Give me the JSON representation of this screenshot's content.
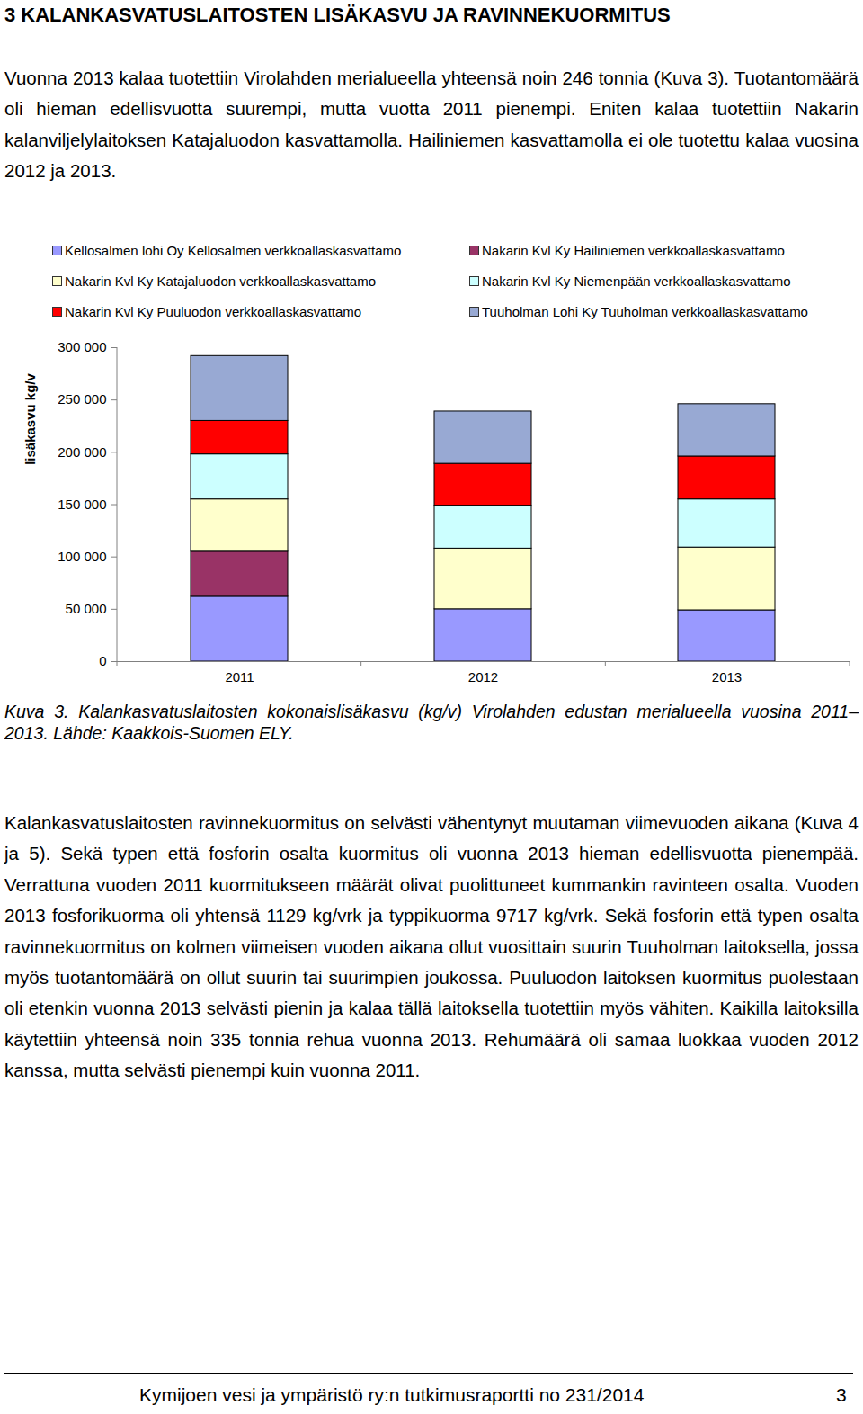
{
  "heading": "3 KALANKASVATUSLAITOSTEN LISÄKASVU JA RAVINNEKUORMITUS",
  "paragraphs": [
    "Vuonna 2013 kalaa tuotettiin Virolahden merialueella yhteensä noin 246 tonnia (Kuva 3). Tuotantomäärä oli hieman edellisvuotta suurempi, mutta vuotta 2011 pienempi. Eniten kalaa tuotettiin Nakarin kalanviljelylaitoksen Katajaluodon kasvattamolla. Hailiniemen kasvattamolla ei ole tuotettu kalaa vuosina 2012 ja 2013.",
    "Kalankasvatuslaitosten ravinnekuormitus on selvästi vähentynyt muutaman viimevuoden aikana (Kuva 4 ja 5). Sekä typen että fosforin osalta kuormitus oli vuonna 2013 hieman edellisvuotta pienempää. Verrattuna vuoden 2011 kuormitukseen määrät olivat puolittuneet kummankin ravinteen osalta. Vuoden 2013 fosforikuorma oli yhtensä 1129 kg/vrk ja typpikuorma 9717 kg/vrk. Sekä fosforin että typen osalta ravinnekuormitus on kolmen viimeisen vuoden aikana ollut vuosittain suurin Tuuholman laitoksella, jossa myös tuotantomäärä on ollut suurin tai suurimpien joukossa. Puuluodon laitoksen kuormitus puolestaan oli etenkin vuonna 2013 selvästi pienin ja kalaa tällä laitoksella tuotettiin myös vähiten. Kaikilla laitoksilla käytettiin yhteensä noin 335 tonnia rehua vuonna 2013. Rehumäärä oli samaa luokkaa vuoden 2012 kanssa, mutta selvästi pienempi kuin vuonna 2011."
  ],
  "chart_data": {
    "type": "bar",
    "stacked": true,
    "y_label": "lisäkasvu kg/v",
    "categories": [
      "2011",
      "2012",
      "2013"
    ],
    "series": [
      {
        "name": "Kellosalmen lohi Oy Kellosalmen verkkoallaskasvattamo",
        "color": "#9999ff",
        "values": [
          62000,
          50000,
          49000
        ]
      },
      {
        "name": "Nakarin Kvl Ky Hailiniemen verkkoallaskasvattamo",
        "color": "#993366",
        "values": [
          43000,
          0,
          0
        ]
      },
      {
        "name": "Nakarin Kvl Ky Katajaluodon verkkoallaskasvattamo",
        "color": "#ffffcc",
        "values": [
          50000,
          58000,
          60000
        ]
      },
      {
        "name": "Nakarin Kvl Ky Niemenpään verkkoallaskasvattamo",
        "color": "#ccffff",
        "values": [
          43000,
          41000,
          46000
        ]
      },
      {
        "name": "Nakarin Kvl Ky Puuluodon verkkoallaskasvattamo",
        "color": "#ff0000",
        "values": [
          32000,
          40000,
          41000
        ]
      },
      {
        "name": "Tuuholman Lohi Ky Tuuholman verkkoallaskasvattamo",
        "color": "#98a9d3",
        "values": [
          62000,
          50000,
          50000
        ]
      }
    ],
    "ylim": [
      0,
      300000
    ],
    "yticks": [
      0,
      {
        "value": 50000,
        "label": "50 000"
      },
      {
        "value": 100000,
        "label": "100 000"
      },
      {
        "value": 150000,
        "label": "150 000"
      },
      {
        "value": 200000,
        "label": "200 000"
      },
      {
        "value": 250000,
        "label": "250 000"
      },
      {
        "value": 300000,
        "label": "300 000"
      }
    ],
    "grid": false,
    "legend": "top"
  },
  "caption": "Kuva 3. Kalankasvatuslaitosten kokonaislisäkasvu (kg/v) Virolahden edustan merialueella vuosina 2011–2013. Lähde: Kaakkois-Suomen ELY.",
  "footer": {
    "text": "Kymijoen vesi ja ympäristö ry:n tutkimusraportti no 231/2014",
    "page": "3"
  }
}
